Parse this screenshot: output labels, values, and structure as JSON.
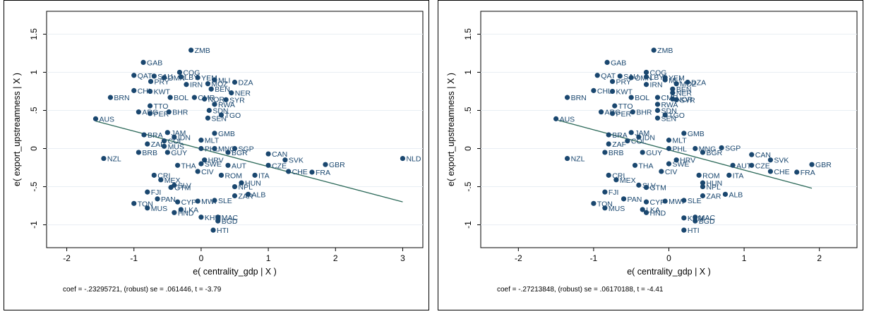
{
  "chart_data": [
    {
      "type": "scatter",
      "xlabel": "e( centrality_gdp | X )",
      "ylabel": "e( export_upstreamness | X )",
      "xlim": [
        -2.3,
        3.3
      ],
      "ylim": [
        -1.3,
        1.8
      ],
      "xticks": [
        -2,
        -1,
        0,
        1,
        2,
        3
      ],
      "yticks": [
        -1,
        -0.5,
        0,
        0.5,
        1,
        1.5
      ],
      "ytick_labels": [
        "-1",
        "-.5",
        "0",
        ".5",
        "1",
        "1.5"
      ],
      "fit_line": {
        "x1": -1.57,
        "y1": 0.36,
        "x2": 3.0,
        "y2": -0.7
      },
      "note": "coef = -.23295721, (robust) se = .061446, t = -3.79",
      "points": [
        {
          "label": "ZMB",
          "x": -0.15,
          "y": 1.29
        },
        {
          "label": "GAB",
          "x": -0.86,
          "y": 1.13
        },
        {
          "label": "COG",
          "x": -0.32,
          "y": 1.0
        },
        {
          "label": "QAT",
          "x": -1.0,
          "y": 0.96
        },
        {
          "label": "SAU",
          "x": -0.7,
          "y": 0.95
        },
        {
          "label": "OMN",
          "x": -0.55,
          "y": 0.93
        },
        {
          "label": "LBY",
          "x": -0.3,
          "y": 0.94
        },
        {
          "label": "YEM",
          "x": -0.05,
          "y": 0.93
        },
        {
          "label": "MLI",
          "x": 0.2,
          "y": 0.9
        },
        {
          "label": "DZA",
          "x": 0.5,
          "y": 0.87
        },
        {
          "label": "PRY",
          "x": -0.75,
          "y": 0.88
        },
        {
          "label": "IRN",
          "x": -0.22,
          "y": 0.84
        },
        {
          "label": "MOZ",
          "x": 0.1,
          "y": 0.85
        },
        {
          "label": "BEN",
          "x": 0.15,
          "y": 0.78
        },
        {
          "label": "NER",
          "x": 0.45,
          "y": 0.73
        },
        {
          "label": "CHL",
          "x": -1.0,
          "y": 0.76
        },
        {
          "label": "KWT",
          "x": -0.76,
          "y": 0.75
        },
        {
          "label": "BRN",
          "x": -1.35,
          "y": 0.67
        },
        {
          "label": "BOL",
          "x": -0.46,
          "y": 0.67
        },
        {
          "label": "CMR",
          "x": -0.1,
          "y": 0.67
        },
        {
          "label": "NOR",
          "x": 0.05,
          "y": 0.65
        },
        {
          "label": "SYR",
          "x": 0.37,
          "y": 0.64
        },
        {
          "label": "RWA",
          "x": 0.2,
          "y": 0.58
        },
        {
          "label": "TTO",
          "x": -0.76,
          "y": 0.56
        },
        {
          "label": "SDN",
          "x": 0.12,
          "y": 0.5
        },
        {
          "label": "ARG",
          "x": -0.93,
          "y": 0.48
        },
        {
          "label": "BHR",
          "x": -0.48,
          "y": 0.48
        },
        {
          "label": "PER",
          "x": -0.76,
          "y": 0.46
        },
        {
          "label": "TGO",
          "x": 0.3,
          "y": 0.44
        },
        {
          "label": "SEN",
          "x": 0.1,
          "y": 0.4
        },
        {
          "label": "AUS",
          "x": -1.57,
          "y": 0.39
        },
        {
          "label": "JAM",
          "x": -0.5,
          "y": 0.21
        },
        {
          "label": "GMB",
          "x": 0.2,
          "y": 0.2
        },
        {
          "label": "BRA",
          "x": -0.85,
          "y": 0.18
        },
        {
          "label": "IDN",
          "x": -0.4,
          "y": 0.15
        },
        {
          "label": "COL",
          "x": -0.55,
          "y": 0.1
        },
        {
          "label": "MLT",
          "x": 0.0,
          "y": 0.11
        },
        {
          "label": "ZAF",
          "x": -0.8,
          "y": 0.06
        },
        {
          "label": "MUS",
          "x": -0.55,
          "y": 0.03
        },
        {
          "label": "PHL",
          "x": 0.0,
          "y": 0.0
        },
        {
          "label": "MNG",
          "x": 0.2,
          "y": 0.0
        },
        {
          "label": "SGP",
          "x": 0.5,
          "y": 0.0
        },
        {
          "label": "BGR",
          "x": 0.4,
          "y": -0.05
        },
        {
          "label": "BRB",
          "x": -0.93,
          "y": -0.05
        },
        {
          "label": "GUY",
          "x": -0.5,
          "y": -0.05
        },
        {
          "label": "CAN",
          "x": 1.0,
          "y": -0.07
        },
        {
          "label": "NZL",
          "x": -1.45,
          "y": -0.13
        },
        {
          "label": "HRV",
          "x": 0.05,
          "y": -0.15
        },
        {
          "label": "SVK",
          "x": 1.25,
          "y": -0.15
        },
        {
          "label": "CZE",
          "x": 1.0,
          "y": -0.22
        },
        {
          "label": "GBR",
          "x": 1.85,
          "y": -0.21
        },
        {
          "label": "NLD",
          "x": 3.0,
          "y": -0.13
        },
        {
          "label": "THA",
          "x": -0.35,
          "y": -0.22
        },
        {
          "label": "SWE",
          "x": 0.0,
          "y": -0.2
        },
        {
          "label": "AUT",
          "x": 0.4,
          "y": -0.22
        },
        {
          "label": "ITA",
          "x": 0.8,
          "y": -0.35
        },
        {
          "label": "CHE",
          "x": 1.3,
          "y": -0.3
        },
        {
          "label": "FRA",
          "x": 1.65,
          "y": -0.31
        },
        {
          "label": "CIV",
          "x": -0.05,
          "y": -0.3
        },
        {
          "label": "CRI",
          "x": -0.7,
          "y": -0.35
        },
        {
          "label": "MEX",
          "x": -0.6,
          "y": -0.41
        },
        {
          "label": "ROM",
          "x": 0.3,
          "y": -0.35
        },
        {
          "label": "NPL",
          "x": 0.5,
          "y": -0.5
        },
        {
          "label": "HUN",
          "x": 0.6,
          "y": -0.45
        },
        {
          "label": "SLV",
          "x": -0.4,
          "y": -0.48
        },
        {
          "label": "GTM",
          "x": -0.45,
          "y": -0.51
        },
        {
          "label": "FJI",
          "x": -0.8,
          "y": -0.57
        },
        {
          "label": "ZAR",
          "x": 0.5,
          "y": -0.62
        },
        {
          "label": "ALB",
          "x": 0.7,
          "y": -0.6
        },
        {
          "label": "PAN",
          "x": -0.65,
          "y": -0.66
        },
        {
          "label": "CYP",
          "x": -0.35,
          "y": -0.7
        },
        {
          "label": "MWI",
          "x": -0.05,
          "y": -0.69
        },
        {
          "label": "SLE",
          "x": 0.2,
          "y": -0.68
        },
        {
          "label": "TON",
          "x": -1.0,
          "y": -0.72
        },
        {
          "label": "MUS",
          "x": -0.8,
          "y": -0.78
        },
        {
          "label": "LKA",
          "x": -0.3,
          "y": -0.8
        },
        {
          "label": "HND",
          "x": -0.4,
          "y": -0.84
        },
        {
          "label": "KHM",
          "x": 0.0,
          "y": -0.9
        },
        {
          "label": "MAC",
          "x": 0.25,
          "y": -0.9
        },
        {
          "label": "BGD",
          "x": 0.25,
          "y": -0.95
        },
        {
          "label": "HTI",
          "x": 0.18,
          "y": -1.07
        }
      ]
    },
    {
      "type": "scatter",
      "xlabel": "e( centrality_gdp | X )",
      "ylabel": "e( export_upstreamness | X )",
      "xlim": [
        -2.5,
        2.5
      ],
      "ylim": [
        -1.3,
        1.8
      ],
      "xticks": [
        -2,
        -1,
        0,
        1,
        2
      ],
      "yticks": [
        -1,
        -0.5,
        0,
        0.5,
        1,
        1.5
      ],
      "ytick_labels": [
        "-1",
        "-.5",
        "0",
        ".5",
        "1",
        "1.5"
      ],
      "fit_line": {
        "x1": -1.47,
        "y1": 0.37,
        "x2": 1.9,
        "y2": -0.52
      },
      "note": "coef = -.27213848, (robust) se = .06170188, t = -4.41",
      "points": [
        {
          "label": "ZMB",
          "x": -0.2,
          "y": 1.29
        },
        {
          "label": "GAB",
          "x": -0.82,
          "y": 1.13
        },
        {
          "label": "COG",
          "x": -0.3,
          "y": 1.0
        },
        {
          "label": "QAT",
          "x": -0.95,
          "y": 0.96
        },
        {
          "label": "SAU",
          "x": -0.65,
          "y": 0.95
        },
        {
          "label": "OMN",
          "x": -0.5,
          "y": 0.93
        },
        {
          "label": "LBY",
          "x": -0.3,
          "y": 0.94
        },
        {
          "label": "YEM",
          "x": -0.05,
          "y": 0.93
        },
        {
          "label": "MLI",
          "x": -0.05,
          "y": 0.9
        },
        {
          "label": "DZA",
          "x": 0.25,
          "y": 0.87
        },
        {
          "label": "PRY",
          "x": -0.75,
          "y": 0.88
        },
        {
          "label": "IRN",
          "x": -0.3,
          "y": 0.84
        },
        {
          "label": "MOZ",
          "x": 0.1,
          "y": 0.85
        },
        {
          "label": "BEN",
          "x": 0.05,
          "y": 0.78
        },
        {
          "label": "NER",
          "x": 0.05,
          "y": 0.73
        },
        {
          "label": "CHL",
          "x": -1.0,
          "y": 0.76
        },
        {
          "label": "KWT",
          "x": -0.75,
          "y": 0.75
        },
        {
          "label": "BRN",
          "x": -1.35,
          "y": 0.67
        },
        {
          "label": "BOL",
          "x": -0.5,
          "y": 0.67
        },
        {
          "label": "CMR",
          "x": -0.15,
          "y": 0.67
        },
        {
          "label": "NOR",
          "x": 0.05,
          "y": 0.65
        },
        {
          "label": "SYR",
          "x": 0.1,
          "y": 0.64
        },
        {
          "label": "RWA",
          "x": -0.15,
          "y": 0.58
        },
        {
          "label": "TTO",
          "x": -0.72,
          "y": 0.56
        },
        {
          "label": "SDN",
          "x": -0.15,
          "y": 0.5
        },
        {
          "label": "ARG",
          "x": -0.9,
          "y": 0.48
        },
        {
          "label": "BHR",
          "x": -0.48,
          "y": 0.48
        },
        {
          "label": "PER",
          "x": -0.75,
          "y": 0.46
        },
        {
          "label": "TGO",
          "x": -0.05,
          "y": 0.44
        },
        {
          "label": "SEN",
          "x": -0.15,
          "y": 0.4
        },
        {
          "label": "AUS",
          "x": -1.5,
          "y": 0.39
        },
        {
          "label": "JAM",
          "x": -0.5,
          "y": 0.21
        },
        {
          "label": "GMB",
          "x": 0.2,
          "y": 0.2
        },
        {
          "label": "BRA",
          "x": -0.8,
          "y": 0.18
        },
        {
          "label": "IDN",
          "x": -0.4,
          "y": 0.15
        },
        {
          "label": "COL",
          "x": -0.55,
          "y": 0.1
        },
        {
          "label": "MLT",
          "x": 0.0,
          "y": 0.11
        },
        {
          "label": "ZAF",
          "x": -0.8,
          "y": 0.06
        },
        {
          "label": "PHL",
          "x": 0.0,
          "y": 0.0
        },
        {
          "label": "MNG",
          "x": 0.35,
          "y": 0.0
        },
        {
          "label": "SGP",
          "x": 0.7,
          "y": 0.01
        },
        {
          "label": "BGR",
          "x": 0.45,
          "y": -0.05
        },
        {
          "label": "BRB",
          "x": -0.85,
          "y": -0.05
        },
        {
          "label": "GUY",
          "x": -0.35,
          "y": -0.05
        },
        {
          "label": "CAN",
          "x": 1.1,
          "y": -0.08
        },
        {
          "label": "NZL",
          "x": -1.35,
          "y": -0.13
        },
        {
          "label": "HRV",
          "x": 0.1,
          "y": -0.15
        },
        {
          "label": "SVK",
          "x": 1.35,
          "y": -0.15
        },
        {
          "label": "CZE",
          "x": 1.1,
          "y": -0.22
        },
        {
          "label": "GBR",
          "x": 1.9,
          "y": -0.21
        },
        {
          "label": "THA",
          "x": -0.45,
          "y": -0.22
        },
        {
          "label": "SWE",
          "x": 0.0,
          "y": -0.2
        },
        {
          "label": "AUT",
          "x": 0.85,
          "y": -0.22
        },
        {
          "label": "ITA",
          "x": 0.8,
          "y": -0.35
        },
        {
          "label": "CHE",
          "x": 1.35,
          "y": -0.3
        },
        {
          "label": "FRA",
          "x": 1.7,
          "y": -0.31
        },
        {
          "label": "CIV",
          "x": -0.1,
          "y": -0.3
        },
        {
          "label": "CRI",
          "x": -0.8,
          "y": -0.35
        },
        {
          "label": "MEX",
          "x": -0.7,
          "y": -0.41
        },
        {
          "label": "ROM",
          "x": 0.4,
          "y": -0.35
        },
        {
          "label": "NPL",
          "x": 0.45,
          "y": -0.5
        },
        {
          "label": "HUN",
          "x": 0.45,
          "y": -0.45
        },
        {
          "label": "SLV",
          "x": -0.4,
          "y": -0.48
        },
        {
          "label": "GTM",
          "x": -0.3,
          "y": -0.51
        },
        {
          "label": "FJI",
          "x": -0.85,
          "y": -0.57
        },
        {
          "label": "ZAR",
          "x": 0.45,
          "y": -0.62
        },
        {
          "label": "ALB",
          "x": 0.75,
          "y": -0.6
        },
        {
          "label": "PAN",
          "x": -0.6,
          "y": -0.66
        },
        {
          "label": "CYP",
          "x": -0.3,
          "y": -0.7
        },
        {
          "label": "MWI",
          "x": -0.05,
          "y": -0.69
        },
        {
          "label": "SLE",
          "x": 0.2,
          "y": -0.68
        },
        {
          "label": "TON",
          "x": -1.0,
          "y": -0.72
        },
        {
          "label": "MUS",
          "x": -0.85,
          "y": -0.78
        },
        {
          "label": "LKA",
          "x": -0.35,
          "y": -0.8
        },
        {
          "label": "HND",
          "x": -0.3,
          "y": -0.84
        },
        {
          "label": "KHM",
          "x": 0.2,
          "y": -0.91
        },
        {
          "label": "MAC",
          "x": 0.35,
          "y": -0.9
        },
        {
          "label": "BGD",
          "x": 0.35,
          "y": -0.95
        },
        {
          "label": "HTI",
          "x": 0.2,
          "y": -1.07
        }
      ]
    }
  ]
}
